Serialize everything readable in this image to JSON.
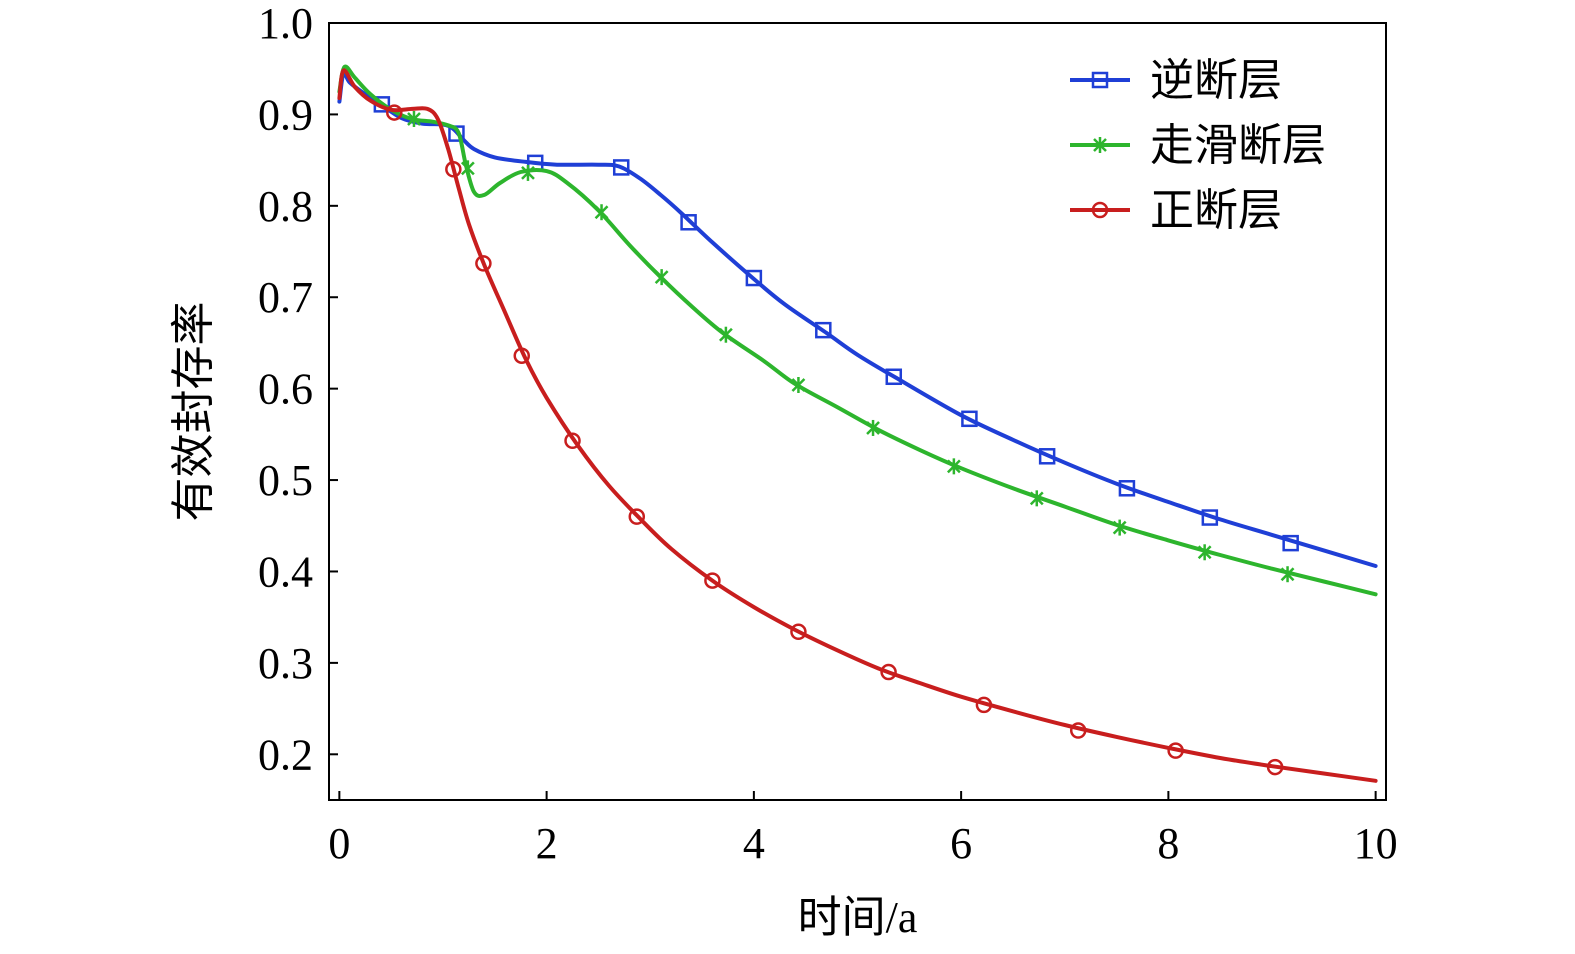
{
  "chart_data": {
    "type": "line",
    "title": "",
    "xlabel": "时间/a",
    "ylabel": "有效封存率",
    "xlim": [
      -0.1,
      10.1
    ],
    "ylim": [
      0.15,
      1.0
    ],
    "xticks": [
      0,
      2,
      4,
      6,
      8,
      10
    ],
    "xtick_labels": [
      "0",
      "2",
      "4",
      "6",
      "8",
      "10"
    ],
    "yticks": [
      0.2,
      0.3,
      0.4,
      0.5,
      0.6,
      0.7,
      0.8,
      0.9,
      1.0
    ],
    "ytick_labels": [
      "0.2",
      "0.3",
      "0.4",
      "0.5",
      "0.6",
      "0.7",
      "0.8",
      "0.9",
      "1.0"
    ],
    "grid": false,
    "legend_position": "top-right",
    "series": [
      {
        "name": "逆断层",
        "color": "#1f3fd6",
        "marker": "square",
        "line": [
          [
            0.0,
            0.914
          ],
          [
            0.04,
            0.945
          ],
          [
            0.1,
            0.935
          ],
          [
            0.25,
            0.922
          ],
          [
            0.4,
            0.911
          ],
          [
            0.6,
            0.896
          ],
          [
            0.8,
            0.89
          ],
          [
            1.0,
            0.889
          ],
          [
            1.1,
            0.884
          ],
          [
            1.2,
            0.872
          ],
          [
            1.3,
            0.862
          ],
          [
            1.5,
            0.853
          ],
          [
            1.8,
            0.848
          ],
          [
            2.1,
            0.845
          ],
          [
            2.5,
            0.845
          ],
          [
            2.7,
            0.843
          ],
          [
            2.9,
            0.83
          ],
          [
            3.1,
            0.812
          ],
          [
            3.3,
            0.792
          ],
          [
            3.6,
            0.76
          ],
          [
            4.0,
            0.72
          ],
          [
            4.3,
            0.692
          ],
          [
            4.7,
            0.661
          ],
          [
            5.0,
            0.637
          ],
          [
            5.4,
            0.61
          ],
          [
            6.0,
            0.571
          ],
          [
            6.5,
            0.544
          ],
          [
            7.0,
            0.519
          ],
          [
            7.5,
            0.496
          ],
          [
            8.0,
            0.476
          ],
          [
            8.5,
            0.457
          ],
          [
            9.0,
            0.44
          ],
          [
            9.5,
            0.423
          ],
          [
            10.0,
            0.406
          ]
        ],
        "markers": [
          [
            0.41,
            0.911
          ],
          [
            1.13,
            0.879
          ],
          [
            1.89,
            0.847
          ],
          [
            2.72,
            0.842
          ],
          [
            3.37,
            0.782
          ],
          [
            4.0,
            0.721
          ],
          [
            4.67,
            0.664
          ],
          [
            5.35,
            0.613
          ],
          [
            6.08,
            0.567
          ],
          [
            6.83,
            0.526
          ],
          [
            7.6,
            0.491
          ],
          [
            8.4,
            0.459
          ],
          [
            9.18,
            0.431
          ]
        ]
      },
      {
        "name": "走滑断层",
        "color": "#2db52d",
        "marker": "asterisk",
        "line": [
          [
            0.0,
            0.925
          ],
          [
            0.05,
            0.952
          ],
          [
            0.15,
            0.94
          ],
          [
            0.3,
            0.922
          ],
          [
            0.5,
            0.905
          ],
          [
            0.7,
            0.895
          ],
          [
            0.9,
            0.892
          ],
          [
            1.05,
            0.888
          ],
          [
            1.15,
            0.88
          ],
          [
            1.22,
            0.845
          ],
          [
            1.3,
            0.815
          ],
          [
            1.4,
            0.812
          ],
          [
            1.55,
            0.825
          ],
          [
            1.75,
            0.837
          ],
          [
            2.0,
            0.838
          ],
          [
            2.2,
            0.825
          ],
          [
            2.5,
            0.795
          ],
          [
            2.8,
            0.757
          ],
          [
            3.1,
            0.722
          ],
          [
            3.4,
            0.69
          ],
          [
            3.7,
            0.661
          ],
          [
            4.1,
            0.63
          ],
          [
            4.4,
            0.605
          ],
          [
            4.8,
            0.58
          ],
          [
            5.2,
            0.555
          ],
          [
            5.6,
            0.533
          ],
          [
            6.0,
            0.513
          ],
          [
            6.5,
            0.491
          ],
          [
            7.0,
            0.471
          ],
          [
            7.5,
            0.451
          ],
          [
            8.0,
            0.434
          ],
          [
            8.5,
            0.418
          ],
          [
            9.0,
            0.403
          ],
          [
            9.5,
            0.389
          ],
          [
            10.0,
            0.375
          ]
        ],
        "markers": [
          [
            0.72,
            0.895
          ],
          [
            1.24,
            0.841
          ],
          [
            1.82,
            0.836
          ],
          [
            2.53,
            0.793
          ],
          [
            3.11,
            0.722
          ],
          [
            3.73,
            0.659
          ],
          [
            4.43,
            0.604
          ],
          [
            5.15,
            0.557
          ],
          [
            5.93,
            0.515
          ],
          [
            6.73,
            0.48
          ],
          [
            7.53,
            0.448
          ],
          [
            8.35,
            0.421
          ],
          [
            9.15,
            0.397
          ]
        ]
      },
      {
        "name": "正断层",
        "color": "#c81e1e",
        "marker": "circle",
        "line": [
          [
            0.0,
            0.918
          ],
          [
            0.04,
            0.948
          ],
          [
            0.15,
            0.93
          ],
          [
            0.3,
            0.915
          ],
          [
            0.5,
            0.905
          ],
          [
            0.7,
            0.906
          ],
          [
            0.85,
            0.906
          ],
          [
            0.95,
            0.895
          ],
          [
            1.05,
            0.862
          ],
          [
            1.15,
            0.82
          ],
          [
            1.25,
            0.78
          ],
          [
            1.4,
            0.735
          ],
          [
            1.6,
            0.683
          ],
          [
            1.8,
            0.632
          ],
          [
            2.0,
            0.59
          ],
          [
            2.3,
            0.538
          ],
          [
            2.6,
            0.494
          ],
          [
            2.9,
            0.458
          ],
          [
            3.2,
            0.425
          ],
          [
            3.6,
            0.39
          ],
          [
            4.0,
            0.361
          ],
          [
            4.4,
            0.336
          ],
          [
            4.8,
            0.314
          ],
          [
            5.2,
            0.294
          ],
          [
            5.6,
            0.278
          ],
          [
            6.0,
            0.263
          ],
          [
            6.5,
            0.247
          ],
          [
            7.0,
            0.232
          ],
          [
            7.5,
            0.219
          ],
          [
            8.0,
            0.207
          ],
          [
            8.5,
            0.196
          ],
          [
            9.0,
            0.187
          ],
          [
            9.5,
            0.179
          ],
          [
            10.0,
            0.171
          ]
        ],
        "markers": [
          [
            0.53,
            0.902
          ],
          [
            1.1,
            0.84
          ],
          [
            1.39,
            0.737
          ],
          [
            1.76,
            0.636
          ],
          [
            2.25,
            0.543
          ],
          [
            2.87,
            0.46
          ],
          [
            3.6,
            0.39
          ],
          [
            4.43,
            0.334
          ],
          [
            5.3,
            0.29
          ],
          [
            6.22,
            0.254
          ],
          [
            7.13,
            0.226
          ],
          [
            8.07,
            0.204
          ],
          [
            9.03,
            0.186
          ]
        ]
      }
    ]
  }
}
